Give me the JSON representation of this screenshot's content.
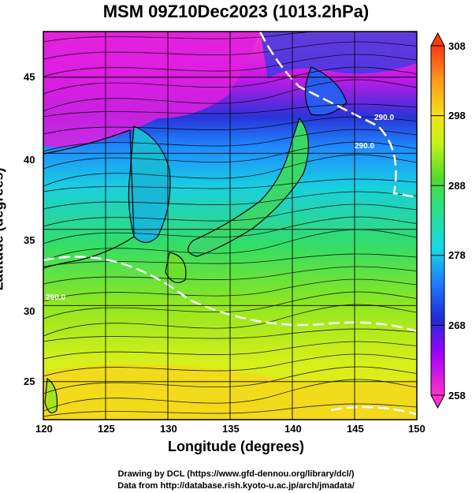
{
  "title": "MSM 09Z10Dec2023 (1013.2hPa)",
  "xlabel": "Longitude (degrees)",
  "ylabel": "Latitude  (degrees)",
  "x_ticks": [
    "120",
    "125",
    "130",
    "135",
    "140",
    "145",
    "150"
  ],
  "y_ticks": [
    "25",
    "30",
    "35",
    "40",
    "45"
  ],
  "colorbar_ticks": [
    "308",
    "298",
    "288",
    "278",
    "268",
    "258"
  ],
  "contour_labels": [
    "290.0",
    "290.0",
    "290.0"
  ],
  "credit_line1": "Drawing by DCL (https://www.gfd-dennou.org/library/dcl/)",
  "credit_line2": "Data from http://database.rish.kyoto-u.ac.jp/arch/jmadata/",
  "map": {
    "lon_range": [
      120,
      150
    ],
    "lat_range": [
      22.5,
      48
    ],
    "variable": "temperature (K)",
    "colorbar_range": [
      258,
      308
    ],
    "colormap": [
      "#ff33cc",
      "#a000ff",
      "#1f2bd6",
      "#1e7bff",
      "#17d9e6",
      "#2fe07a",
      "#4fdc2b",
      "#c5f21a",
      "#f2e11a",
      "#ff9a1a",
      "#ff3a10"
    ],
    "grid": true,
    "overlay": "streamlines and white isotherm contours"
  }
}
